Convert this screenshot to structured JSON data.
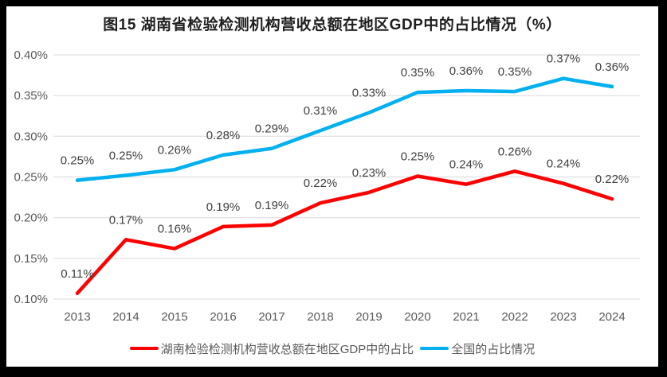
{
  "chart_data": {
    "type": "line",
    "title": "图15 湖南省检验检测机构营收总额在地区GDP中的占比情况（%）",
    "categories": [
      "2013",
      "2014",
      "2015",
      "2016",
      "2017",
      "2018",
      "2019",
      "2020",
      "2021",
      "2022",
      "2023",
      "2024"
    ],
    "series": [
      {
        "name": "湖南检验检测机构营收总额在地区GDP中的占比",
        "color": "#FF0000",
        "values": [
          0.107,
          0.173,
          0.162,
          0.189,
          0.191,
          0.218,
          0.231,
          0.251,
          0.241,
          0.257,
          0.242,
          0.223
        ],
        "point_labels": [
          "0.11%",
          "0.17%",
          "0.16%",
          "0.19%",
          "0.19%",
          "0.22%",
          "0.23%",
          "0.25%",
          "0.24%",
          "0.26%",
          "0.24%",
          "0.22%"
        ]
      },
      {
        "name": "全国的占比情况",
        "color": "#00B0F0",
        "values": [
          0.246,
          0.252,
          0.259,
          0.277,
          0.285,
          0.307,
          0.329,
          0.354,
          0.356,
          0.355,
          0.371,
          0.361
        ],
        "point_labels": [
          "0.25%",
          "0.25%",
          "0.26%",
          "0.28%",
          "0.29%",
          "0.31%",
          "0.33%",
          "0.35%",
          "0.36%",
          "0.35%",
          "0.37%",
          "0.36%"
        ]
      }
    ],
    "xlabel": "",
    "ylabel": "",
    "y_axis": {
      "min": 0.1,
      "max": 0.4,
      "tick_values": [
        0.1,
        0.15,
        0.2,
        0.25,
        0.3,
        0.35,
        0.4
      ],
      "tick_labels": [
        "0.10%",
        "0.15%",
        "0.20%",
        "0.25%",
        "0.30%",
        "0.35%",
        "0.40%"
      ]
    },
    "grid": true,
    "legend_position": "bottom",
    "colors": {
      "gridline": "#D9D9D9",
      "axis_text": "#595959",
      "data_label_text": "#404040",
      "title_text": "#1f1f1f",
      "background": "#FFFFFF",
      "frame_border": "#000000"
    }
  }
}
